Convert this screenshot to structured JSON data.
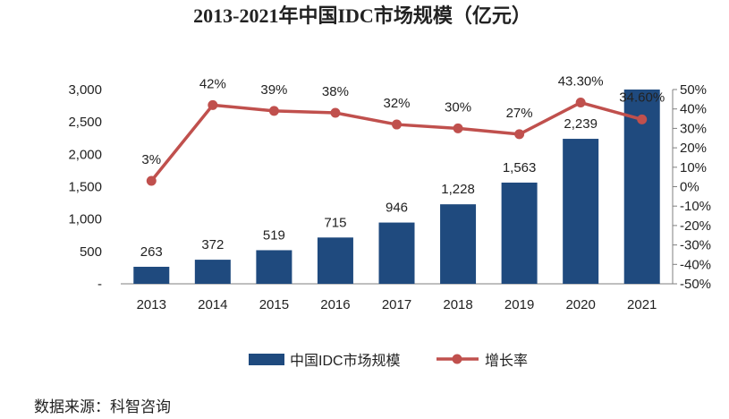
{
  "chart_data": {
    "type": "bar",
    "title": "2013-2021年中国IDC市场规模（亿元）",
    "categories": [
      "2013",
      "2014",
      "2015",
      "2016",
      "2017",
      "2018",
      "2019",
      "2020",
      "2021"
    ],
    "series": [
      {
        "name": "中国IDC市场规模",
        "type": "bar",
        "axis": "left",
        "values": [
          263,
          372,
          519,
          715,
          946,
          1228,
          1563,
          2239,
          3002
        ],
        "labels": [
          "263",
          "372",
          "519",
          "715",
          "946",
          "1,228",
          "1,563",
          "2,239",
          ""
        ],
        "color": "#1f4a7e"
      },
      {
        "name": "增长率",
        "type": "line",
        "axis": "right",
        "values": [
          3,
          42,
          39,
          38,
          32,
          30,
          27,
          43.3,
          34.6
        ],
        "labels": [
          "3%",
          "42%",
          "39%",
          "38%",
          "32%",
          "30%",
          "27%",
          "43.30%",
          "34.60%"
        ],
        "color": "#c0504d"
      }
    ],
    "y_left": {
      "ylim": [
        0,
        3000
      ],
      "ticks": [
        0,
        500,
        1000,
        1500,
        2000,
        2500,
        3000
      ],
      "tick_labels": [
        "-",
        "500",
        "1,000",
        "1,500",
        "2,000",
        "2,500",
        "3,000"
      ]
    },
    "y_right": {
      "ylim": [
        -50,
        50
      ],
      "ticks": [
        -50,
        -40,
        -30,
        -20,
        -10,
        0,
        10,
        20,
        30,
        40,
        50
      ],
      "tick_labels": [
        "-50%",
        "-40%",
        "-30%",
        "-20%",
        "-10%",
        "0%",
        "10%",
        "20%",
        "30%",
        "40%",
        "50%"
      ]
    },
    "legend_position": "bottom",
    "grid": false
  },
  "source_text": "数据来源：科智咨询"
}
